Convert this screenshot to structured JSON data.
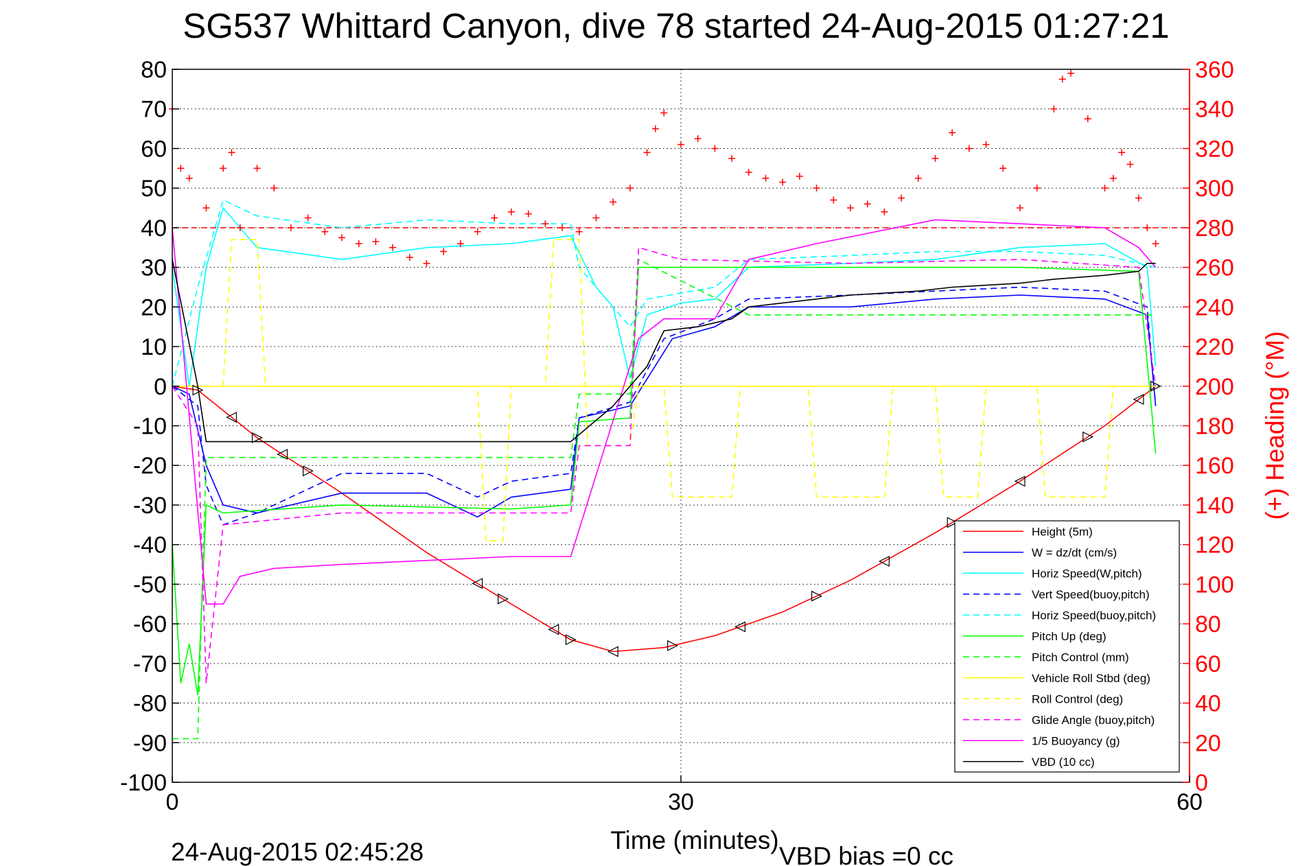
{
  "chart_data": {
    "type": "line",
    "title": "SG537 Whittard Canyon, dive 78 started 24-Aug-2015 01:27:21",
    "xlabel": "Time (minutes)",
    "ylabel": "",
    "y2label": "(+) Heading (°M)",
    "xlim": [
      0,
      60
    ],
    "ylim": [
      -100,
      80
    ],
    "y2lim": [
      0,
      360
    ],
    "xticks": [
      "0",
      "30",
      "60"
    ],
    "yticks": [
      "80",
      "70",
      "60",
      "50",
      "40",
      "30",
      "20",
      "10",
      "0",
      "-10",
      "-20",
      "-30",
      "-40",
      "-50",
      "-60",
      "-70",
      "-80",
      "-90",
      "-100"
    ],
    "y2ticks": [
      "360",
      "340",
      "320",
      "300",
      "280",
      "260",
      "240",
      "220",
      "200",
      "180",
      "160",
      "140",
      "120",
      "100",
      "80",
      "60",
      "40",
      "20",
      "0"
    ],
    "grid": true,
    "legend_position": "bottom-right",
    "footer_left": "24-Aug-2015 02:45:28",
    "footer_right": "VBD bias =0 cc",
    "series": [
      {
        "name": "Height (5m)",
        "color": "#ff0000",
        "style": "solid",
        "x": [
          0,
          1.5,
          5,
          10,
          15,
          20,
          23.5,
          26,
          29,
          32,
          36,
          40,
          45,
          50,
          55,
          58
        ],
        "values": [
          0,
          -1,
          -13,
          -27,
          -42,
          -55,
          -64,
          -67,
          -66,
          -63,
          -57,
          -49,
          -37,
          -24,
          -10,
          0
        ]
      },
      {
        "name": "W = dz/dt (cm/s)",
        "color": "#0000ff",
        "style": "solid",
        "x": [
          0,
          1,
          2,
          3,
          5,
          10,
          15,
          18,
          20,
          23.5,
          24,
          27,
          29.5,
          32,
          34,
          40,
          45,
          50,
          55,
          57.5,
          58
        ],
        "values": [
          0,
          -2,
          -20,
          -30,
          -32,
          -27,
          -27,
          -33,
          -28,
          -26,
          -8,
          -5,
          12,
          15,
          20,
          20,
          22,
          23,
          22,
          18,
          -5
        ]
      },
      {
        "name": "Horiz Speed(W,pitch)",
        "color": "#00ffff",
        "style": "solid",
        "x": [
          0,
          1,
          2,
          3,
          5,
          10,
          15,
          20,
          23.5,
          25,
          26,
          27,
          28,
          30,
          32,
          34,
          40,
          45,
          50,
          55,
          57.5,
          58
        ],
        "values": [
          30,
          0,
          30,
          45,
          35,
          32,
          35,
          36,
          38,
          25,
          20,
          2,
          18,
          21,
          22,
          30,
          31,
          32,
          35,
          36,
          30,
          5
        ]
      },
      {
        "name": "Vert Speed(buoy,pitch)",
        "color": "#0000ff",
        "style": "dashed",
        "x": [
          0,
          1.5,
          2,
          3,
          5,
          10,
          15,
          18,
          20,
          23.5,
          24,
          27,
          29,
          32,
          34,
          40,
          45,
          50,
          55,
          57.5,
          58
        ],
        "values": [
          0,
          -5,
          -25,
          -35,
          -32,
          -22,
          -22,
          -28,
          -24,
          -22,
          -8,
          -4,
          12,
          17,
          22,
          23,
          24,
          25,
          24,
          20,
          -5
        ]
      },
      {
        "name": "Horiz Speed(buoy,pitch)",
        "color": "#00ffff",
        "style": "dashed",
        "x": [
          0,
          1.5,
          3,
          5,
          10,
          15,
          20,
          23.5,
          24,
          27,
          28,
          32,
          34,
          40,
          45,
          50,
          55,
          58
        ],
        "values": [
          0,
          25,
          47,
          43,
          40,
          42,
          41,
          41,
          30,
          15,
          22,
          25,
          32,
          33,
          34,
          34,
          33,
          30
        ]
      },
      {
        "name": "Pitch Up (deg)",
        "color": "#00ff00",
        "style": "solid",
        "x": [
          0,
          0.5,
          1,
          1.5,
          2,
          3,
          10,
          20,
          23.5,
          24,
          27,
          27.5,
          30,
          40,
          50,
          57,
          58
        ],
        "values": [
          -40,
          -75,
          -65,
          -78,
          -30,
          -32,
          -30,
          -31,
          -30,
          -9,
          -8,
          30,
          30,
          30,
          30,
          29,
          -17
        ]
      },
      {
        "name": "Pitch Control (mm)",
        "color": "#00ff00",
        "style": "dashed",
        "x": [
          0,
          1.5,
          2,
          23.5,
          24,
          27,
          27.5,
          34,
          58
        ],
        "values": [
          -89,
          -89,
          -18,
          -18,
          -2,
          -2,
          32,
          18,
          18
        ]
      },
      {
        "name": "Vehicle Roll Stbd (deg)",
        "color": "#ffff00",
        "style": "solid",
        "x": [
          0,
          58
        ],
        "values": [
          0,
          0
        ]
      },
      {
        "name": "Roll Control (deg)",
        "color": "#ffff00",
        "style": "dashed",
        "x": [
          0,
          3,
          3.5,
          5,
          5.5,
          8,
          8.5,
          18,
          18.5,
          19.5,
          20,
          22,
          22.5,
          24,
          24.5,
          27,
          27.5,
          29,
          29.5,
          33,
          33.5,
          37.5,
          38,
          42,
          42.5,
          45,
          45.5,
          47.5,
          48,
          51,
          51.5,
          55,
          55.5,
          58
        ],
        "values": [
          0,
          0,
          37,
          37,
          0,
          0,
          0,
          0,
          -39,
          -39,
          0,
          0,
          37,
          37,
          -15,
          -15,
          0,
          0,
          -28,
          -28,
          0,
          0,
          -28,
          -28,
          0,
          0,
          -28,
          -28,
          0,
          0,
          -28,
          -28,
          0,
          0
        ]
      },
      {
        "name": "Glide Angle (buoy,pitch)",
        "color": "#ff00ff",
        "style": "dashed",
        "x": [
          0,
          1.5,
          2,
          3,
          10,
          20,
          23.5,
          24,
          27,
          27.5,
          30,
          40,
          50,
          57,
          58
        ],
        "values": [
          0,
          -10,
          -75,
          -35,
          -32,
          -32,
          -32,
          -15,
          -15,
          35,
          32,
          31,
          32,
          30,
          0
        ]
      },
      {
        "name": "1/5 Buoyancy (g)",
        "color": "#ff00ff",
        "style": "solid",
        "x": [
          0,
          2,
          3,
          4,
          6,
          10,
          20,
          23.5,
          27.5,
          29,
          32,
          34,
          38,
          45,
          50,
          55,
          57,
          58
        ],
        "values": [
          40,
          -55,
          -55,
          -48,
          -46,
          -45,
          -43,
          -43,
          12,
          17,
          17,
          32,
          36,
          42,
          41,
          40,
          35,
          30
        ]
      },
      {
        "name": "VBD (10 cc)",
        "color": "#000000",
        "style": "solid",
        "x": [
          0,
          1.5,
          2,
          23.5,
          26,
          28,
          29,
          31,
          33,
          34,
          38,
          40,
          44,
          46,
          50,
          52,
          55,
          57,
          57.5,
          58
        ],
        "values": [
          32,
          0,
          -14,
          -14,
          -5,
          5,
          14,
          15,
          17,
          20,
          22,
          23,
          24,
          25,
          26,
          27,
          28,
          29,
          31,
          31
        ]
      },
      {
        "name": "Heading",
        "color": "#ff0000",
        "style": "plus",
        "x": [
          0,
          0.5,
          1,
          2,
          3,
          3.5,
          4,
          5,
          6,
          7,
          8,
          9,
          10,
          11,
          12,
          13,
          14,
          15,
          16,
          17,
          18,
          19,
          20,
          21,
          22,
          23,
          24,
          25,
          26,
          27,
          28,
          28.5,
          29,
          30,
          31,
          32,
          33,
          34,
          35,
          36,
          37,
          38,
          39,
          40,
          41,
          42,
          43,
          44,
          45,
          46,
          47,
          48,
          49,
          50,
          51,
          52,
          52.5,
          53,
          54,
          55,
          55.5,
          56,
          56.5,
          57,
          57.5,
          58
        ],
        "values": [
          340,
          310,
          305,
          290,
          310,
          318,
          280,
          310,
          300,
          280,
          285,
          278,
          275,
          272,
          273,
          270,
          265,
          262,
          268,
          272,
          278,
          285,
          288,
          287,
          282,
          280,
          278,
          285,
          293,
          300,
          318,
          330,
          338,
          322,
          325,
          320,
          315,
          308,
          305,
          303,
          306,
          300,
          294,
          290,
          292,
          288,
          295,
          305,
          315,
          328,
          320,
          322,
          310,
          290,
          300,
          340,
          355,
          358,
          335,
          300,
          305,
          318,
          312,
          295,
          280,
          272
        ]
      }
    ]
  }
}
